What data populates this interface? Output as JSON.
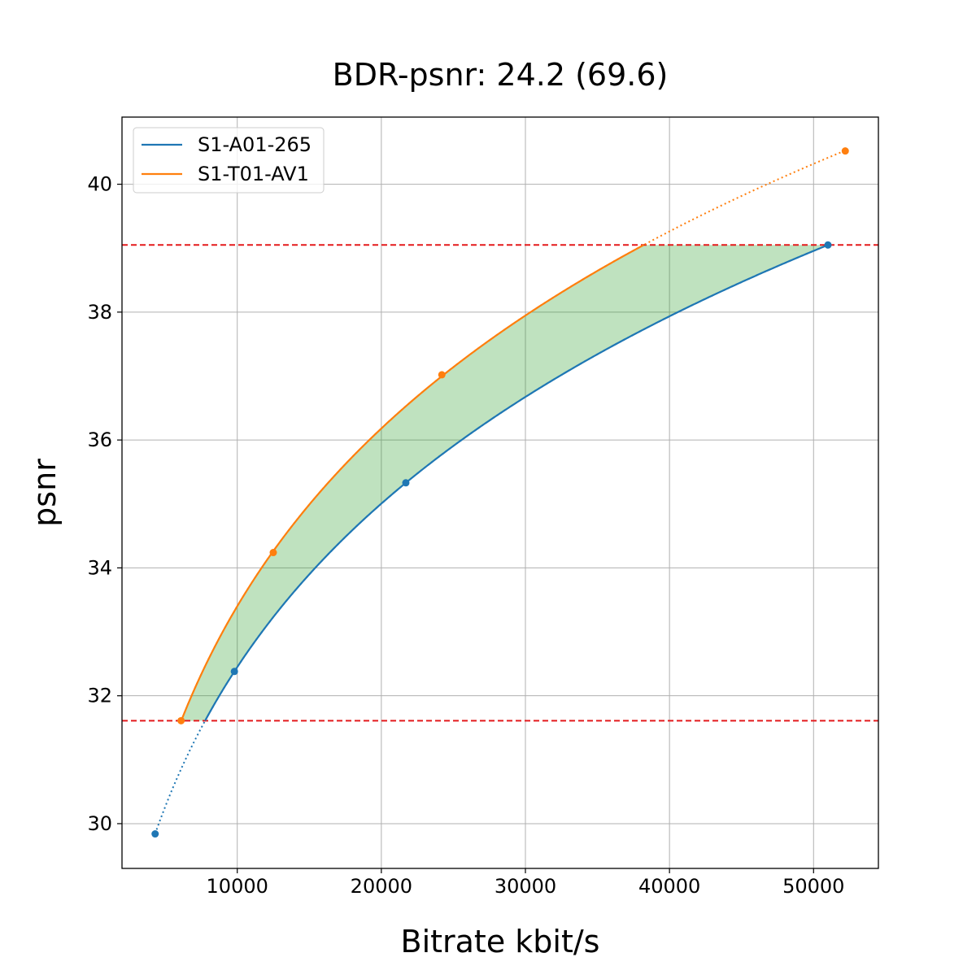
{
  "chart_data": {
    "type": "line",
    "title": "BDR-psnr: 24.2 (69.6)",
    "xlabel": "Bitrate kbit/s",
    "ylabel": "psnr",
    "xlim": [
      2000,
      54500
    ],
    "ylim": [
      29.3,
      41.05
    ],
    "xticks": [
      10000,
      20000,
      30000,
      40000,
      50000
    ],
    "yticks": [
      30,
      32,
      34,
      36,
      38,
      40
    ],
    "grid": true,
    "legend_position": "top-left",
    "series": [
      {
        "name": "S1-A01-265",
        "color": "#1f77b4",
        "points": [
          [
            4300,
            29.84
          ],
          [
            9800,
            32.38
          ],
          [
            21700,
            35.33
          ],
          [
            51000,
            39.05
          ]
        ]
      },
      {
        "name": "S1-T01-AV1",
        "color": "#ff7f0e",
        "points": [
          [
            6100,
            31.61
          ],
          [
            12500,
            34.24
          ],
          [
            24200,
            37.02
          ],
          [
            52200,
            40.52
          ]
        ]
      }
    ],
    "reference_lines": [
      {
        "y": 39.05,
        "color": "#e41a1c",
        "style": "dashed"
      },
      {
        "y": 31.61,
        "color": "#e41a1c",
        "style": "dashed"
      }
    ],
    "fill_between": {
      "y_range": [
        31.61,
        39.05
      ],
      "color": "#2ca02c",
      "opacity": 0.3
    }
  }
}
